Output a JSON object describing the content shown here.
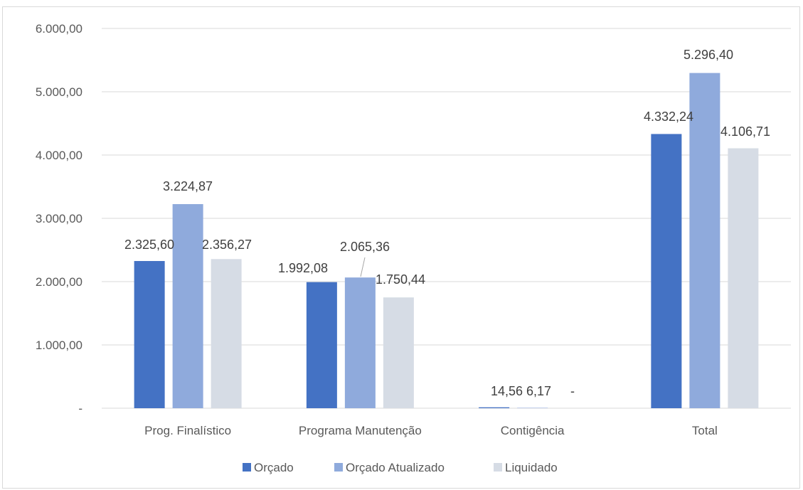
{
  "chart_data": {
    "type": "bar",
    "title": "",
    "xlabel": "",
    "ylabel": "",
    "ylim": [
      0,
      6000
    ],
    "yticks": [
      {
        "value": 0,
        "label": "-"
      },
      {
        "value": 1000,
        "label": "1.000,00"
      },
      {
        "value": 2000,
        "label": "2.000,00"
      },
      {
        "value": 3000,
        "label": "3.000,00"
      },
      {
        "value": 4000,
        "label": "4.000,00"
      },
      {
        "value": 5000,
        "label": "5.000,00"
      },
      {
        "value": 6000,
        "label": "6.000,00"
      }
    ],
    "grid": true,
    "legend_position": "bottom",
    "categories": [
      "Prog. Finalístico",
      "Programa Manutenção",
      "Contigência",
      "Total"
    ],
    "series": [
      {
        "name": "Orçado",
        "color": "#4472c4",
        "values": [
          2325.6,
          1992.08,
          14.56,
          4332.24
        ],
        "labels": [
          "2.325,60",
          "1.992,08",
          "14,56",
          "4.332,24"
        ]
      },
      {
        "name": "Orçado Atualizado",
        "color": "#8faadc",
        "values": [
          3224.87,
          2065.36,
          6.17,
          5296.4
        ],
        "labels": [
          "3.224,87",
          "2.065,36",
          "6,17",
          "5.296,40"
        ]
      },
      {
        "name": "Liquidado",
        "color": "#d6dce5",
        "values": [
          2356.27,
          1750.44,
          0,
          4106.71
        ],
        "labels": [
          "2.356,27",
          "1.750,44",
          "-",
          "4.106,71"
        ]
      }
    ]
  }
}
